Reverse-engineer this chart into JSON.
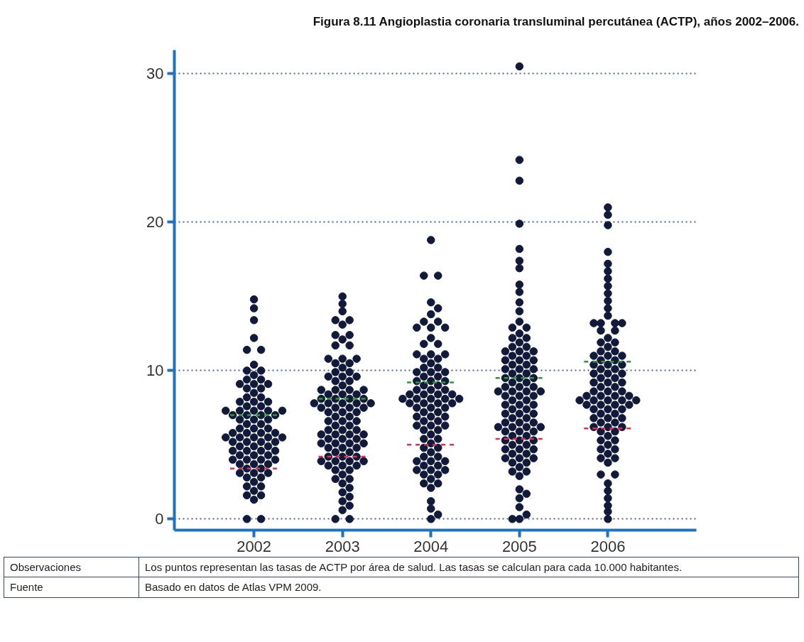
{
  "chart_data": {
    "type": "scatter",
    "title": "Figura 8.11 Angioplastia coronaria transluminal percutánea (ACTP), años 2002–2006.",
    "xlim": [
      2001.1,
      2007.0
    ],
    "xticks": [
      2002,
      2003,
      2004,
      2005,
      2006
    ],
    "ylim": [
      -0.75,
      31.6
    ],
    "yticks": [
      0,
      10,
      20,
      30
    ],
    "grid": "y",
    "marker": "circle",
    "series": [
      {
        "color": "#111a3a",
        "x": [
          2002,
          2002,
          2002,
          2002,
          2001.92,
          2002.08,
          2002,
          2001.92,
          2002.08,
          2002,
          2001.92,
          2002.08,
          2001.84,
          2002,
          2002.16,
          2001.92,
          2002.08,
          2002,
          2001.92,
          2002.08,
          2001.84,
          2002,
          2002.16,
          2001.92,
          2002.08,
          2001.68,
          2001.84,
          2002,
          2002.16,
          2002.32,
          2001.76,
          2001.92,
          2002.08,
          2002.24,
          2001.84,
          2002,
          2002.16,
          2001.92,
          2002.08,
          2001.84,
          2002,
          2002.16,
          2001.76,
          2001.92,
          2002.08,
          2002.24,
          2001.68,
          2001.84,
          2002,
          2002.16,
          2002.32,
          2001.76,
          2001.92,
          2002.08,
          2002.24,
          2001.84,
          2002,
          2002.16,
          2001.76,
          2001.92,
          2002.08,
          2002.24,
          2001.84,
          2002,
          2002.16,
          2001.76,
          2001.92,
          2002.08,
          2002.24,
          2001.84,
          2002,
          2002.16,
          2001.92,
          2002.08,
          2001.84,
          2002,
          2002.16,
          2001.92,
          2002.08,
          2002,
          2001.92,
          2002.08,
          2002,
          2001.92,
          2002.08,
          2002,
          2001.92,
          2002.08
        ],
        "values": [
          14.8,
          14.2,
          13.4,
          12.2,
          11.4,
          11.4,
          10.4,
          10.0,
          10.0,
          9.7,
          9.4,
          9.4,
          9.1,
          9.1,
          9.1,
          8.8,
          8.8,
          8.5,
          8.2,
          8.2,
          7.9,
          7.9,
          7.9,
          7.6,
          7.6,
          7.3,
          7.3,
          7.3,
          7.3,
          7.3,
          7.0,
          7.0,
          7.0,
          7.0,
          6.7,
          6.7,
          6.7,
          6.4,
          6.4,
          6.1,
          6.1,
          6.1,
          5.8,
          5.8,
          5.8,
          5.8,
          5.5,
          5.5,
          5.5,
          5.5,
          5.5,
          5.2,
          5.2,
          5.2,
          5.2,
          4.9,
          4.9,
          4.9,
          4.6,
          4.6,
          4.6,
          4.6,
          4.3,
          4.3,
          4.3,
          4.0,
          4.0,
          4.0,
          4.0,
          3.7,
          3.7,
          3.7,
          3.4,
          3.4,
          3.1,
          3.1,
          3.1,
          2.8,
          2.8,
          2.5,
          2.2,
          2.2,
          1.9,
          1.6,
          1.6,
          1.3,
          0.0,
          0.0
        ]
      },
      {
        "color": "#111a3a",
        "x": [
          2003,
          2003,
          2003,
          2002.92,
          2003.08,
          2003,
          2002.92,
          2003.08,
          2003,
          2002.92,
          2003.08,
          2002.84,
          2003,
          2003.16,
          2002.92,
          2003.08,
          2003,
          2002.92,
          2003.08,
          2002.84,
          2003,
          2003.16,
          2002.92,
          2003.08,
          2003,
          2002.76,
          2002.92,
          2003.08,
          2003.24,
          2002.84,
          2003,
          2003.16,
          2002.76,
          2002.92,
          2003.08,
          2003.24,
          2002.68,
          2002.84,
          2003,
          2003.16,
          2003.32,
          2002.76,
          2002.92,
          2003.08,
          2003.24,
          2002.84,
          2003,
          2003.16,
          2002.92,
          2003.08,
          2002.84,
          2003,
          2003.16,
          2002.92,
          2003.08,
          2002.84,
          2003,
          2003.16,
          2002.76,
          2002.92,
          2003.08,
          2003.24,
          2002.84,
          2003,
          2003.16,
          2002.76,
          2002.92,
          2003.08,
          2003.24,
          2002.84,
          2003,
          2003.16,
          2002.92,
          2003.08,
          2002.84,
          2003,
          2003.16,
          2002.76,
          2002.92,
          2003.08,
          2003.24,
          2002.84,
          2003,
          2003.16,
          2002.92,
          2003.08,
          2003,
          2002.92,
          2003.08,
          2003,
          2003.08,
          2003,
          2003.08,
          2003,
          2003.08,
          2003,
          2002.92,
          2003.08
        ],
        "values": [
          15.0,
          14.5,
          14.0,
          13.4,
          13.4,
          13.1,
          12.4,
          12.4,
          12.1,
          11.7,
          11.7,
          10.8,
          10.8,
          10.8,
          10.5,
          10.5,
          10.2,
          9.9,
          9.9,
          9.6,
          9.6,
          9.6,
          9.3,
          9.3,
          9.0,
          8.7,
          8.7,
          8.7,
          8.7,
          8.4,
          8.4,
          8.4,
          8.1,
          8.1,
          8.1,
          8.1,
          7.8,
          7.8,
          7.8,
          7.8,
          7.8,
          7.5,
          7.5,
          7.5,
          7.5,
          7.2,
          7.2,
          7.2,
          6.9,
          6.9,
          6.6,
          6.6,
          6.6,
          6.3,
          6.3,
          6.0,
          6.0,
          6.0,
          5.7,
          5.7,
          5.7,
          5.7,
          5.4,
          5.4,
          5.4,
          5.1,
          5.1,
          5.1,
          5.1,
          4.8,
          4.8,
          4.8,
          4.5,
          4.5,
          4.2,
          4.2,
          4.2,
          3.9,
          3.9,
          3.9,
          3.9,
          3.6,
          3.6,
          3.6,
          3.3,
          3.3,
          3.0,
          2.7,
          2.7,
          2.4,
          2.1,
          1.8,
          1.5,
          1.2,
          0.9,
          0.6,
          0.0,
          0.0
        ]
      },
      {
        "color": "#111a3a",
        "x": [
          2004,
          2003.92,
          2004.08,
          2004,
          2004.08,
          2004,
          2003.92,
          2004.08,
          2003.84,
          2004,
          2004.16,
          2004,
          2003.92,
          2004.08,
          2003.84,
          2004,
          2004.16,
          2003.92,
          2004.08,
          2004,
          2003.92,
          2004.08,
          2003.84,
          2004,
          2004.16,
          2003.92,
          2004.08,
          2003.84,
          2004,
          2004.16,
          2003.92,
          2004.08,
          2003.84,
          2004,
          2004.16,
          2003.76,
          2003.92,
          2004.08,
          2004.24,
          2003.68,
          2003.84,
          2004,
          2004.16,
          2004.32,
          2003.76,
          2003.92,
          2004.08,
          2004.24,
          2003.84,
          2004,
          2004.16,
          2003.92,
          2004.08,
          2003.84,
          2004,
          2004.16,
          2003.92,
          2004.08,
          2003.84,
          2004,
          2004.16,
          2003.92,
          2004.08,
          2004,
          2003.92,
          2004.08,
          2004,
          2003.92,
          2004.08,
          2004,
          2003.92,
          2004.08,
          2003.84,
          2004,
          2004.16,
          2003.92,
          2004.08,
          2003.84,
          2004,
          2004.16,
          2003.92,
          2004.08,
          2004,
          2003.92,
          2004.08,
          2004,
          2004,
          2004,
          2004.08,
          2004
        ],
        "values": [
          18.8,
          16.4,
          16.4,
          14.6,
          14.2,
          13.8,
          13.3,
          13.3,
          12.9,
          12.9,
          12.9,
          12.2,
          11.8,
          11.8,
          11.1,
          11.1,
          11.1,
          10.8,
          10.8,
          10.5,
          10.2,
          10.2,
          9.9,
          9.9,
          9.9,
          9.6,
          9.6,
          9.3,
          9.3,
          9.3,
          9.0,
          9.0,
          8.7,
          8.7,
          8.7,
          8.4,
          8.4,
          8.4,
          8.4,
          8.1,
          8.1,
          8.1,
          8.1,
          8.1,
          7.8,
          7.8,
          7.8,
          7.8,
          7.5,
          7.5,
          7.5,
          7.2,
          7.2,
          6.9,
          6.9,
          6.9,
          6.6,
          6.6,
          6.3,
          6.3,
          6.3,
          6.0,
          6.0,
          5.7,
          5.4,
          5.4,
          5.1,
          4.8,
          4.8,
          4.5,
          4.2,
          4.2,
          3.9,
          3.9,
          3.9,
          3.6,
          3.6,
          3.3,
          3.3,
          3.3,
          3.0,
          3.0,
          2.7,
          2.4,
          2.4,
          2.1,
          1.2,
          0.7,
          0.3,
          0.0
        ]
      },
      {
        "color": "#111a3a",
        "x": [
          2005,
          2005,
          2005,
          2005,
          2005,
          2005,
          2005,
          2005,
          2005,
          2005,
          2005,
          2005,
          2004.92,
          2005.08,
          2005,
          2004.92,
          2005.08,
          2005,
          2004.92,
          2005.08,
          2004.84,
          2005,
          2005.16,
          2004.92,
          2005.08,
          2004.84,
          2005,
          2005.16,
          2004.92,
          2005.08,
          2004.84,
          2005,
          2005.16,
          2004.92,
          2005.08,
          2004.84,
          2005,
          2005.16,
          2004.92,
          2005.08,
          2004.84,
          2005,
          2005.16,
          2004.76,
          2004.92,
          2005.08,
          2005.24,
          2004.84,
          2005,
          2005.16,
          2004.92,
          2005.08,
          2004.84,
          2005,
          2005.16,
          2004.92,
          2005.08,
          2004.84,
          2005,
          2005.16,
          2004.92,
          2005.08,
          2004.84,
          2005,
          2005.16,
          2004.76,
          2004.92,
          2005.08,
          2005.24,
          2004.84,
          2005,
          2005.16,
          2004.92,
          2005.08,
          2004.84,
          2005,
          2005.16,
          2004.92,
          2005.08,
          2004.84,
          2005,
          2005.16,
          2004.92,
          2005.08,
          2004.84,
          2005,
          2005.16,
          2004.92,
          2005.08,
          2005,
          2004.92,
          2005.08,
          2005,
          2005,
          2005.08,
          2005,
          2005,
          2005.08,
          2004.92,
          2005
        ],
        "values": [
          30.5,
          24.2,
          22.8,
          19.9,
          18.2,
          17.4,
          16.9,
          15.8,
          15.3,
          14.6,
          14.0,
          13.3,
          12.9,
          12.9,
          12.5,
          12.2,
          12.2,
          11.9,
          11.6,
          11.6,
          11.3,
          11.3,
          11.3,
          11.0,
          11.0,
          10.7,
          10.7,
          10.7,
          10.4,
          10.4,
          10.1,
          10.1,
          10.1,
          9.8,
          9.8,
          9.5,
          9.5,
          9.5,
          9.2,
          9.2,
          8.9,
          8.9,
          8.9,
          8.6,
          8.6,
          8.6,
          8.6,
          8.3,
          8.3,
          8.3,
          8.0,
          8.0,
          7.7,
          7.7,
          7.7,
          7.4,
          7.4,
          7.1,
          7.1,
          7.1,
          6.8,
          6.8,
          6.5,
          6.5,
          6.5,
          6.2,
          6.2,
          6.2,
          6.2,
          5.9,
          5.9,
          5.9,
          5.6,
          5.6,
          5.3,
          5.3,
          5.3,
          5.0,
          5.0,
          4.7,
          4.7,
          4.7,
          4.4,
          4.4,
          4.1,
          4.1,
          4.1,
          3.8,
          3.8,
          3.5,
          3.2,
          3.2,
          2.9,
          2.0,
          1.7,
          1.4,
          0.8,
          0.3,
          0.0,
          0.0
        ]
      },
      {
        "color": "#111a3a",
        "x": [
          2006,
          2006,
          2006,
          2006,
          2006,
          2006,
          2006,
          2006,
          2006,
          2006,
          2006,
          2006,
          2005.84,
          2005.92,
          2006.08,
          2006.16,
          2005.92,
          2006.08,
          2006,
          2005.92,
          2006.08,
          2006,
          2005.92,
          2006.08,
          2005.84,
          2006,
          2006.16,
          2005.92,
          2006.08,
          2005.84,
          2006,
          2006.16,
          2005.92,
          2006.08,
          2005.84,
          2006,
          2006.16,
          2005.92,
          2006.08,
          2005.84,
          2006,
          2006.16,
          2005.92,
          2006.08,
          2005.84,
          2006,
          2006.16,
          2005.76,
          2005.92,
          2006.08,
          2006.24,
          2005.68,
          2005.84,
          2006,
          2006.16,
          2006.32,
          2005.76,
          2005.92,
          2006.08,
          2006.24,
          2005.84,
          2006,
          2006.16,
          2005.92,
          2006.08,
          2005.84,
          2006,
          2006.16,
          2005.92,
          2006.08,
          2005.84,
          2006,
          2006.16,
          2005.92,
          2006.08,
          2006,
          2005.92,
          2006.08,
          2006,
          2005.92,
          2006.08,
          2006,
          2005.92,
          2006.08,
          2006,
          2005.92,
          2006.08,
          2006,
          2006,
          2006,
          2006,
          2006,
          2006
        ],
        "values": [
          21.0,
          20.5,
          19.8,
          18.0,
          17.2,
          16.7,
          16.2,
          15.7,
          15.2,
          14.7,
          14.2,
          13.7,
          13.2,
          13.2,
          13.2,
          13.2,
          12.7,
          12.7,
          12.2,
          11.9,
          11.9,
          11.6,
          11.3,
          11.3,
          11.0,
          11.0,
          11.0,
          10.7,
          10.7,
          10.4,
          10.4,
          10.4,
          10.1,
          10.1,
          9.8,
          9.8,
          9.8,
          9.5,
          9.5,
          9.2,
          9.2,
          9.2,
          8.9,
          8.9,
          8.6,
          8.6,
          8.6,
          8.3,
          8.3,
          8.3,
          8.3,
          8.0,
          8.0,
          8.0,
          8.0,
          8.0,
          7.7,
          7.7,
          7.7,
          7.7,
          7.4,
          7.4,
          7.4,
          7.1,
          7.1,
          6.8,
          6.8,
          6.8,
          6.5,
          6.5,
          6.2,
          6.2,
          6.2,
          5.9,
          5.9,
          5.6,
          5.3,
          5.3,
          5.0,
          4.7,
          4.7,
          4.4,
          4.1,
          4.1,
          3.8,
          3.0,
          3.0,
          2.4,
          1.9,
          1.4,
          0.9,
          0.5,
          0.0
        ]
      },
      {
        "type": "line",
        "color": "#2e9a2e",
        "marker": "none",
        "line_style": "dashed",
        "x": [
          2001.73,
          2002.27,
          null,
          2002.73,
          2003.27,
          null,
          2003.73,
          2004.27,
          null,
          2004.73,
          2005.27,
          null,
          2005.73,
          2006.27
        ],
        "values": [
          7.0,
          7.0,
          null,
          8.1,
          8.1,
          null,
          9.2,
          9.2,
          null,
          9.5,
          9.5,
          null,
          10.6,
          10.6
        ]
      },
      {
        "type": "line",
        "color": "#e0304a",
        "marker": "none",
        "line_style": "dashed",
        "x": [
          2001.73,
          2002.27,
          null,
          2002.73,
          2003.27,
          null,
          2003.73,
          2004.27,
          null,
          2004.73,
          2005.27,
          null,
          2005.73,
          2006.27
        ],
        "values": [
          3.4,
          3.4,
          null,
          4.2,
          4.2,
          null,
          5.0,
          5.0,
          null,
          5.4,
          5.4,
          null,
          6.1,
          6.1
        ]
      }
    ],
    "annotations": [
      "Observaciones",
      "Los puntos representan las tasas de ACTP por área de salud. Las tasas se calculan para cada 10.000 habitantes.",
      "Fuente",
      "Basado en datos de Atlas VPM 2009."
    ]
  }
}
